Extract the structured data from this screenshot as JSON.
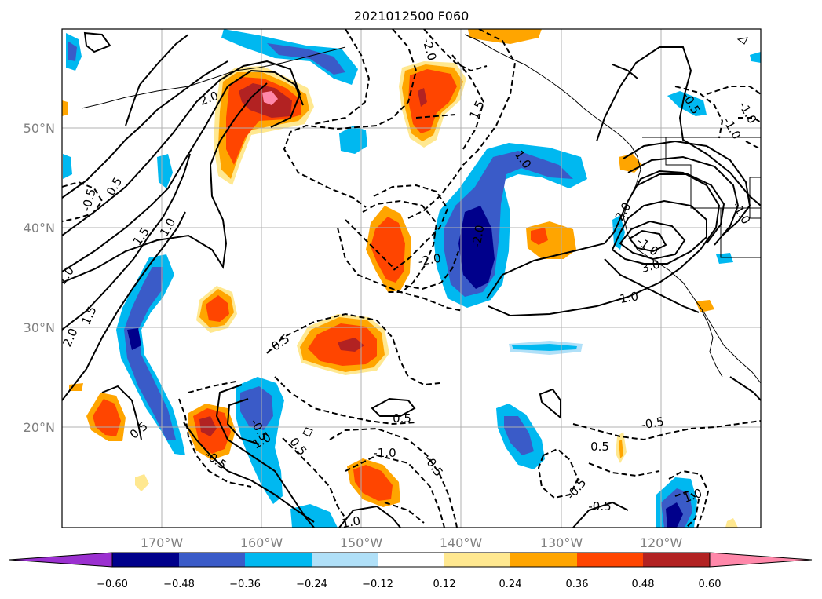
{
  "title": "2021012500 F060",
  "map": {
    "lat_labels": [
      "50°N",
      "40°N",
      "30°N",
      "20°N"
    ],
    "lon_labels": [
      "170°W",
      "160°W",
      "150°W",
      "140°W",
      "130°W",
      "120°W"
    ]
  },
  "colorbar": {
    "tick_labels": [
      "−0.60",
      "−0.48",
      "−0.36",
      "−0.24",
      "−0.12",
      "0.12",
      "0.24",
      "0.36",
      "0.48",
      "0.60"
    ],
    "colors": [
      "#9b30d0",
      "#00008b",
      "#3a5bc8",
      "#00b8f0",
      "#b0e0f8",
      "#ffffff",
      "#ffe890",
      "#ffa500",
      "#ff4500",
      "#b22222",
      "#ff88aa"
    ],
    "extend": "both"
  },
  "contour_labels": [
    "2.0",
    "-2.0",
    "1.5",
    "1.0",
    "-0.5",
    "0.5",
    "1.0",
    "1.5",
    "1.0",
    "1.5",
    "2.0",
    "-1.0",
    "-0.5",
    "-1.0",
    "-2.0",
    "-0.5",
    "-0.5",
    "0.5",
    "1.0",
    "-2.0",
    "2.0",
    "-1.0",
    "3.0",
    "1.0",
    "-0.5",
    "0.5",
    "0.5",
    "-1.0",
    "-0.5",
    "1.0",
    "0.5",
    "-0.5",
    "-0.5",
    "-0.5",
    "1.0",
    "-1.0"
  ]
}
